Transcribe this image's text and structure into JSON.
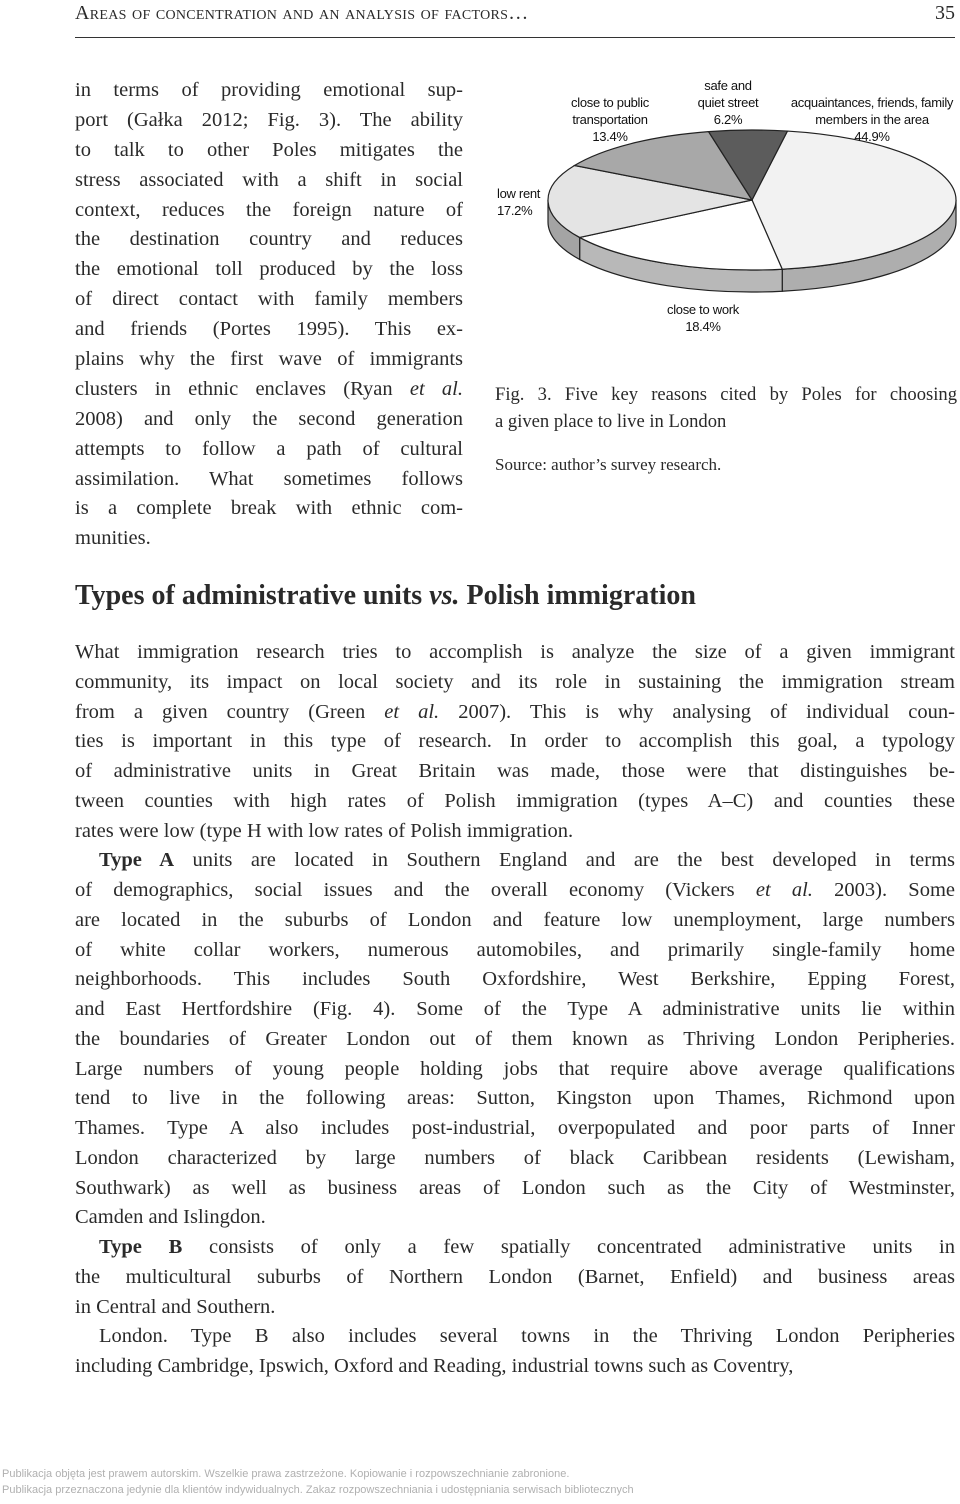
{
  "header": {
    "title": "Areas of concentration and an analysis of factors…",
    "page": "35"
  },
  "left_column": {
    "lines": [
      "in terms of providing emotional sup-",
      "port (Gałka 2012; Fig. 3). The ability",
      "to talk to other Poles mitigates the",
      "stress associated with a shift in social",
      "context, reduces the foreign nature of",
      "the destination country and reduces",
      "the emotional toll produced by the loss",
      "of direct contact with family members",
      "and friends (Portes 1995). This ex-",
      "plains why the first wave of immigrants",
      [
        "clusters in ethnic enclaves (Ryan ",
        {
          "italic": "et al."
        }
      ],
      "2008) and only the second generation",
      "attempts to follow a path of cultural",
      "assimilation. What sometimes follows",
      "is a complete break with ethnic com-",
      "munities."
    ]
  },
  "figure": {
    "chart_data": {
      "type": "pie",
      "categories": [
        "acquaintances, friends, family members in the area",
        "close to work",
        "low rent",
        "close to public transportation",
        "safe and quiet street"
      ],
      "values": [
        44.9,
        18.4,
        17.2,
        13.4,
        6.2
      ],
      "value_labels": [
        "44.9%",
        "18.4%",
        "17.2%",
        "13.4%",
        "6.2%"
      ],
      "colors": [
        "#f2f2f2",
        "#ffffff",
        "#e4e4e4",
        "#a8a8a8",
        "#5c5c5c"
      ]
    },
    "caption": [
      "Fig. 3. Five key reasons cited by Poles for choosing",
      "a given place to live in London"
    ],
    "source": "Source: author’s survey research."
  },
  "section": {
    "heading": [
      "Types of administrative units ",
      {
        "italic": "vs."
      },
      " Polish immigration"
    ],
    "paragraphs": [
      {
        "indent": false,
        "lines": [
          "What immigration research tries to accomplish is analyze the size of a given immigrant",
          "community, its impact on local society and its role in sustaining the immigration stream",
          [
            "from a given country (Green ",
            {
              "italic": "et al."
            },
            " 2007). This is why analysing of individual coun-"
          ],
          "ties is important in this type of research. In order to accomplish this goal, a typology",
          "of administrative units in Great Britain was made, those were that distinguishes be-",
          "tween counties with high rates of Polish immigration (types A–C) and counties these",
          "rates were low (type H with low rates of Polish immigration."
        ]
      },
      {
        "indent": true,
        "lines": [
          [
            {
              "bold": "Type A"
            },
            " units are located in Southern England and are the best developed in terms"
          ],
          [
            "of demographics, social issues and the overall economy (Vickers ",
            {
              "italic": "et al."
            },
            " 2003). Some"
          ],
          "are located in the suburbs of London and feature low unemployment, large numbers",
          "of white collar workers, numerous automobiles, and primarily single-family home",
          "neighborhoods. This includes South Oxfordshire, West Berkshire, Epping Forest,",
          "and East Hertfordshire (Fig. 4). Some of the Type A administrative units lie within",
          "the boundaries of Greater London out of them known as Thriving London Peripheries.",
          "Large numbers of young people holding jobs that require above average qualifications",
          "tend to live in the following areas: Sutton, Kingston upon Thames, Richmond upon",
          "Thames. Type A also includes post-industrial, overpopulated and poor parts of Inner",
          "London characterized by large numbers of black Caribbean residents (Lewisham,",
          "Southwark) as well as business areas of London such as the City of Westminster,",
          "Camden and Islingdon."
        ]
      },
      {
        "indent": true,
        "lines": [
          [
            {
              "bold": "Type B"
            },
            " consists of only a few spatially concentrated administrative units in"
          ],
          "the multicultural suburbs of Northern London (Barnet, Enfield) and business areas",
          "in Central and Southern."
        ]
      },
      {
        "indent": true,
        "lines": [
          "London. Type B also includes several towns in the Thriving London Peripheries",
          "including Cambridge, Ipswich, Oxford and Reading, industrial towns such as Coventry,"
        ]
      }
    ]
  },
  "footer": {
    "lines": [
      "Publikacja objęta jest prawem autorskim. Wszelkie prawa zastrzeżone. Kopiowanie i rozpowszechnianie zabronione.",
      "Publikacja przeznaczona jedynie dla klientów indywidualnych. Zakaz rozpowszechniania i udostępniania serwisach bibliotecznych"
    ]
  }
}
